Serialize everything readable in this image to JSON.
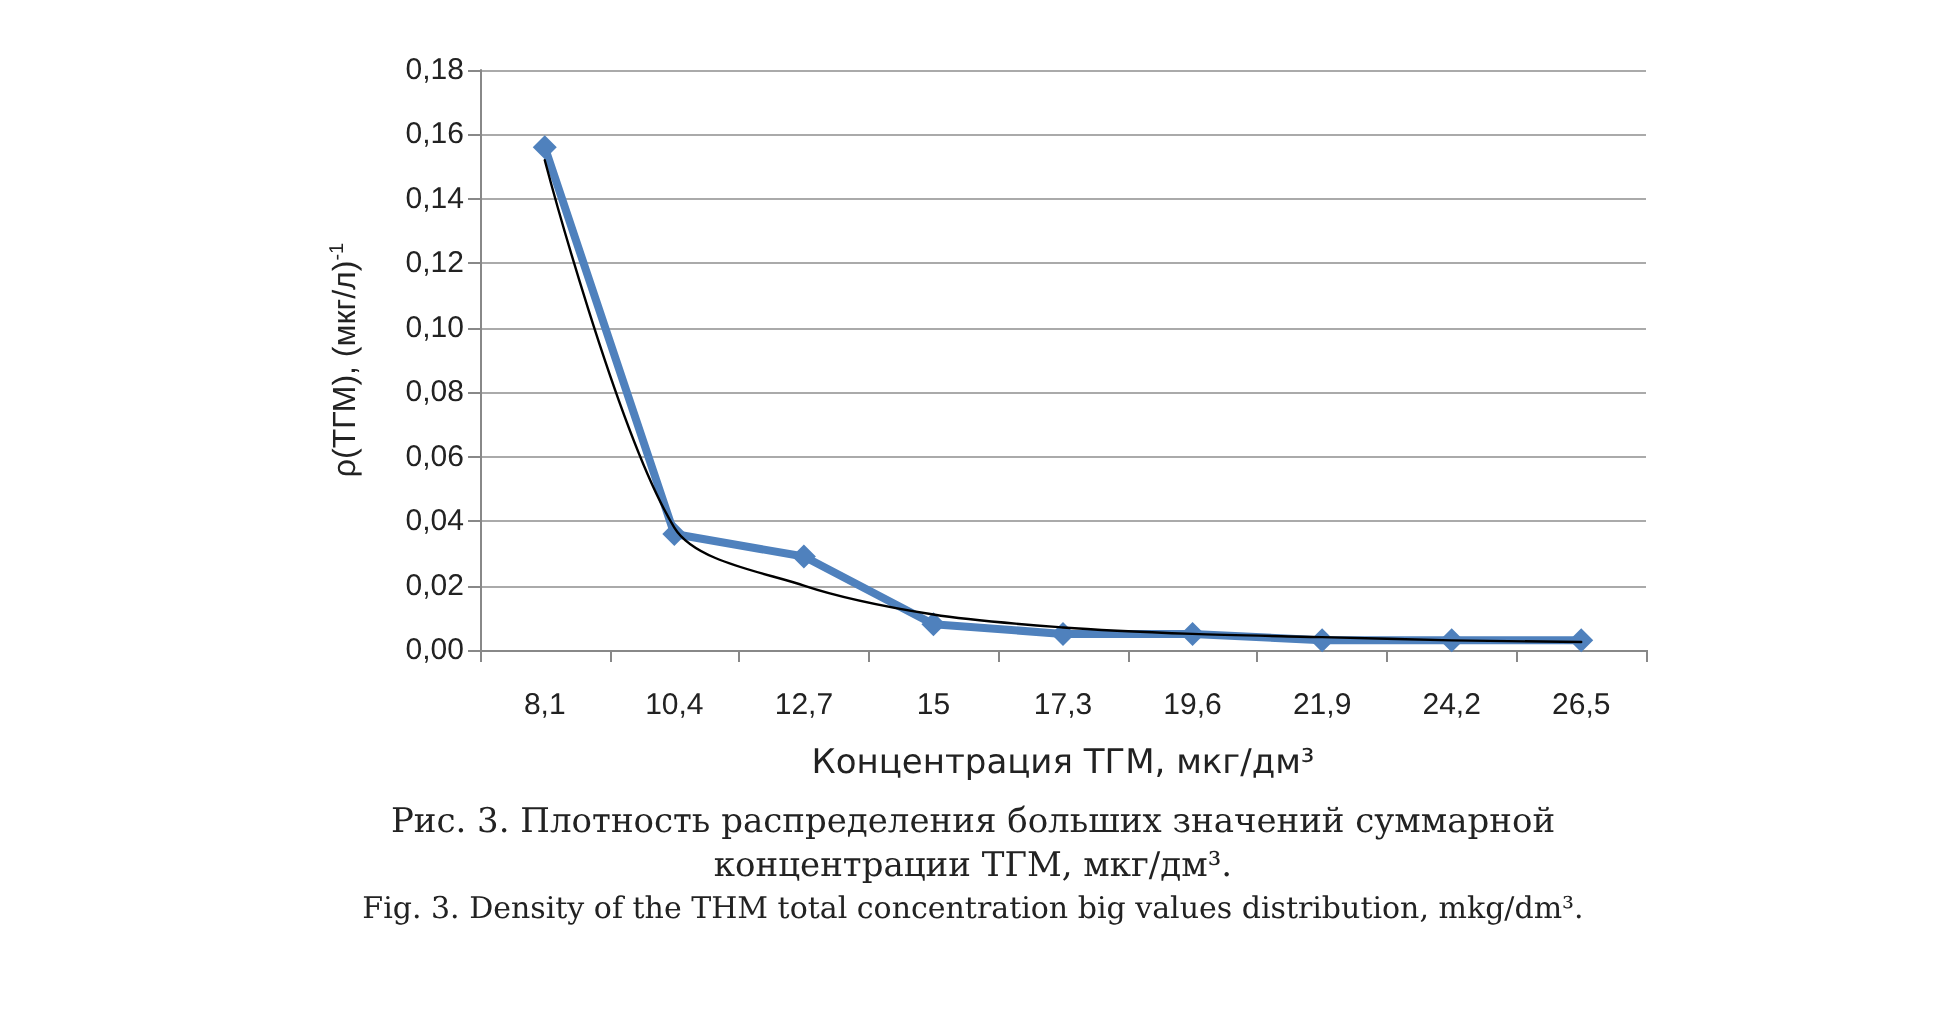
{
  "chart_data": {
    "type": "line",
    "xlabel": "Концентрация ТГМ, мкг/дм³",
    "ylabel": "ρ(ТГМ), (мкг/л)$^{-1}$",
    "categories": [
      "8,1",
      "10,4",
      "12,7",
      "15",
      "17,3",
      "19,6",
      "21,9",
      "24,2",
      "26,5"
    ],
    "series": [
      {
        "color": "#4f81bd",
        "values": [
          0.156,
          0.036,
          0.029,
          0.008,
          0.005,
          0.005,
          0.003,
          0.003,
          0.003
        ],
        "marker": "diamond",
        "line_style": "solid"
      },
      {
        "color": "#000000",
        "values": [
          0.152,
          0.038,
          0.02,
          0.011,
          0.007,
          0.005,
          0.004,
          0.003,
          0.0025
        ],
        "marker": "none",
        "line_style": "solid"
      }
    ],
    "ylim": [
      0,
      0.18
    ],
    "yticks": [
      {
        "value": 0,
        "label": "0,00"
      },
      {
        "value": 0.02,
        "label": "0,02"
      },
      {
        "value": 0.04,
        "label": "0,04"
      },
      {
        "value": 0.06,
        "label": "0,06"
      },
      {
        "value": 0.08,
        "label": "0,08"
      },
      {
        "value": 0.1,
        "label": "0,10"
      },
      {
        "value": 0.12,
        "label": "0,12"
      },
      {
        "value": 0.14,
        "label": "0,14"
      },
      {
        "value": 0.16,
        "label": "0,16"
      },
      {
        "value": 0.18,
        "label": "0,18"
      }
    ],
    "grid": "y",
    "annotations": [
      "Рис. 3. Плотность распределения больших значений суммарной концентрации ТГМ, мкг/дм³.",
      "Fig. 3. Density of the THM total concentration big values distribution, mkg/dm³."
    ]
  }
}
